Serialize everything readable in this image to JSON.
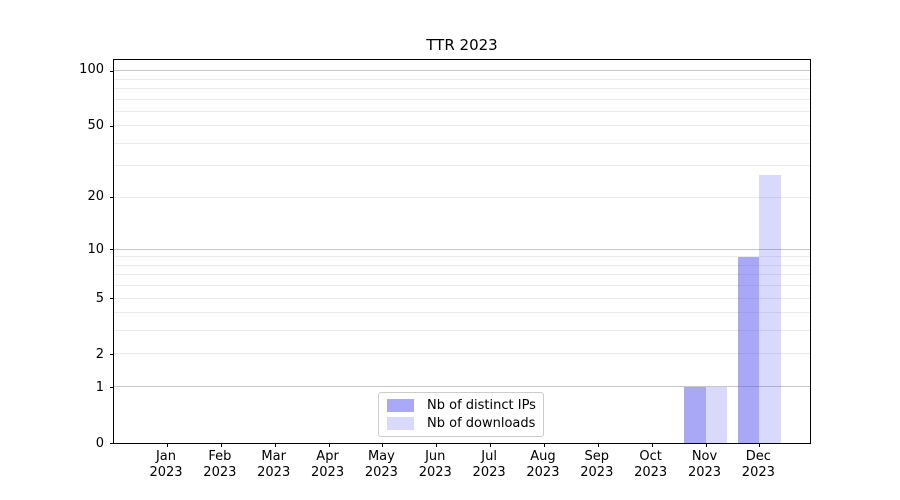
{
  "title": "TTR 2023",
  "chart_data": {
    "type": "bar",
    "title": "TTR 2023",
    "categories": [
      "Jan 2023",
      "Feb 2023",
      "Mar 2023",
      "Apr 2023",
      "May 2023",
      "Jun 2023",
      "Jul 2023",
      "Aug 2023",
      "Sep 2023",
      "Oct 2023",
      "Nov 2023",
      "Dec 2023"
    ],
    "series": [
      {
        "name": "Nb of distinct IPs",
        "color": "#a9a9f8",
        "fill": "rgba(82,82,240,0.5)",
        "values": [
          0,
          0,
          0,
          0,
          0,
          0,
          0,
          0,
          0,
          0,
          1,
          9
        ]
      },
      {
        "name": "Nb of downloads",
        "color": "#d9d9fb",
        "fill": "rgba(82,82,240,0.22)",
        "values": [
          0,
          0,
          0,
          0,
          0,
          0,
          0,
          0,
          0,
          0,
          1,
          27
        ]
      }
    ],
    "xlabel": "",
    "ylabel": "",
    "yscale": "log1p",
    "y_ticks": [
      0,
      1,
      2,
      5,
      10,
      20,
      50,
      100
    ],
    "ylim": [
      0,
      115
    ],
    "grid": "horizontal major+minor",
    "legend_position": "lower center"
  },
  "colors": {
    "major_grid": "#c6c6c6",
    "minor_grid": "#ebebeb",
    "axis": "#000000",
    "text": "#000000"
  }
}
